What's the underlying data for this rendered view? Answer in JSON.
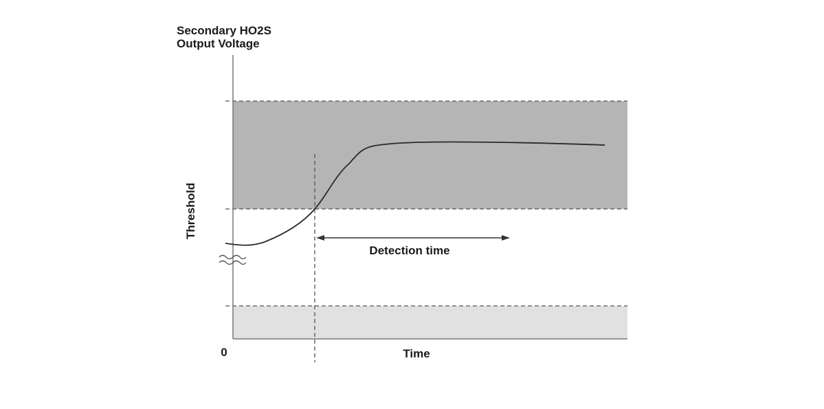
{
  "diagram": {
    "y_axis_label_line1": "Secondary HO2S",
    "y_axis_label_line2": "Output Voltage",
    "threshold_label": "Threshold",
    "x_axis_label": "Time",
    "origin_label": "0",
    "annotation": "Detection time",
    "colors": {
      "upper_band": "#b4b5b4",
      "lower_band": "#e1e1e1",
      "line": "#2a2a2a",
      "dashed": "#555555"
    }
  }
}
